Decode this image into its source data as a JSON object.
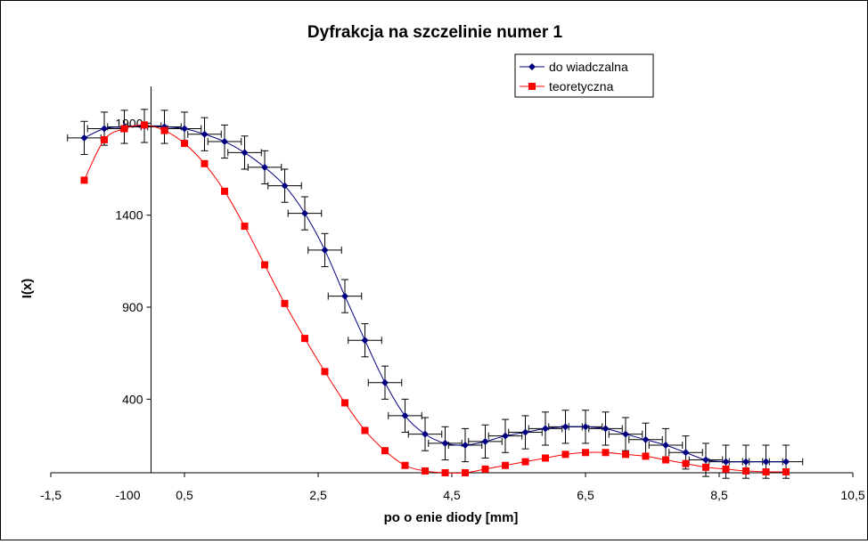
{
  "chart_data": {
    "type": "line",
    "title": "Dyfrakcja na szczelinie numer 1",
    "xlabel": "po o  enie diody [mm]",
    "ylabel": "I(x)",
    "xlim": [
      -1.5,
      10.5
    ],
    "ylim": [
      -100,
      2100
    ],
    "x_ticks": [
      -1.5,
      0.5,
      2.5,
      4.5,
      6.5,
      8.5,
      10.5
    ],
    "x_tick_labels": [
      "-1,5",
      "0,5",
      "2,5",
      "4,5",
      "6,5",
      "8,5",
      "10,5"
    ],
    "y_ticks": [
      400,
      900,
      1400,
      1900
    ],
    "y_tick_labels": [
      "400",
      "900",
      "1400",
      "1900"
    ],
    "y_min_label": "-100",
    "legend_position": "top-right",
    "series": [
      {
        "name": "do  wiadczalna",
        "color": "#000080",
        "marker": "diamond",
        "error_x": 0.25,
        "error_y": 90,
        "x": [
          -1.0,
          -0.7,
          -0.4,
          -0.1,
          0.2,
          0.5,
          0.8,
          1.1,
          1.4,
          1.7,
          2.0,
          2.3,
          2.6,
          2.9,
          3.2,
          3.5,
          3.8,
          4.1,
          4.4,
          4.7,
          5.0,
          5.3,
          5.6,
          5.9,
          6.2,
          6.5,
          6.8,
          7.1,
          7.4,
          7.7,
          8.0,
          8.3,
          8.6,
          8.9,
          9.2,
          9.5
        ],
        "y": [
          1820,
          1870,
          1880,
          1885,
          1880,
          1870,
          1840,
          1800,
          1740,
          1660,
          1560,
          1410,
          1210,
          960,
          720,
          490,
          310,
          210,
          160,
          150,
          170,
          200,
          220,
          240,
          250,
          250,
          240,
          210,
          180,
          150,
          110,
          70,
          60,
          60,
          60,
          60
        ]
      },
      {
        "name": "teoretyczna",
        "color": "#ff0000",
        "marker": "square",
        "x": [
          -1.0,
          -0.7,
          -0.4,
          -0.1,
          0.2,
          0.5,
          0.8,
          1.1,
          1.4,
          1.7,
          2.0,
          2.3,
          2.6,
          2.9,
          3.2,
          3.5,
          3.8,
          4.1,
          4.4,
          4.7,
          5.0,
          5.3,
          5.6,
          5.9,
          6.2,
          6.5,
          6.8,
          7.1,
          7.4,
          7.7,
          8.0,
          8.3,
          8.6,
          8.9,
          9.2,
          9.5
        ],
        "y": [
          1590,
          1810,
          1870,
          1890,
          1860,
          1790,
          1680,
          1530,
          1340,
          1130,
          920,
          730,
          550,
          380,
          230,
          120,
          40,
          10,
          0,
          0,
          20,
          40,
          60,
          80,
          100,
          110,
          110,
          100,
          90,
          70,
          50,
          30,
          20,
          10,
          5,
          5
        ]
      }
    ]
  }
}
